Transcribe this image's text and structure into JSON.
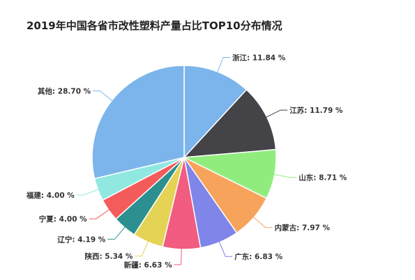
{
  "chart_data": {
    "type": "pie",
    "title": "2019年中国各省市改性塑料产量占比TOP10分布情况",
    "label_format": " %",
    "slices": [
      {
        "name": "浙江",
        "value": 11.84,
        "color": "#7cb5ec"
      },
      {
        "name": "江苏",
        "value": 11.79,
        "color": "#434348"
      },
      {
        "name": "山东",
        "value": 8.71,
        "color": "#90ed7d"
      },
      {
        "name": "内蒙古",
        "value": 7.97,
        "color": "#f7a35c"
      },
      {
        "name": "广东",
        "value": 6.83,
        "color": "#8085e9"
      },
      {
        "name": "新疆",
        "value": 6.63,
        "color": "#f15c80"
      },
      {
        "name": "陕西",
        "value": 5.34,
        "color": "#e4d354"
      },
      {
        "name": "辽宁",
        "value": 4.19,
        "color": "#2b908f"
      },
      {
        "name": "宁夏",
        "value": 4.0,
        "color": "#f45b5b"
      },
      {
        "name": "福建",
        "value": 4.0,
        "color": "#91e8e1"
      },
      {
        "name": "其他",
        "value": 28.7,
        "color": "#7cb5ec"
      }
    ]
  }
}
